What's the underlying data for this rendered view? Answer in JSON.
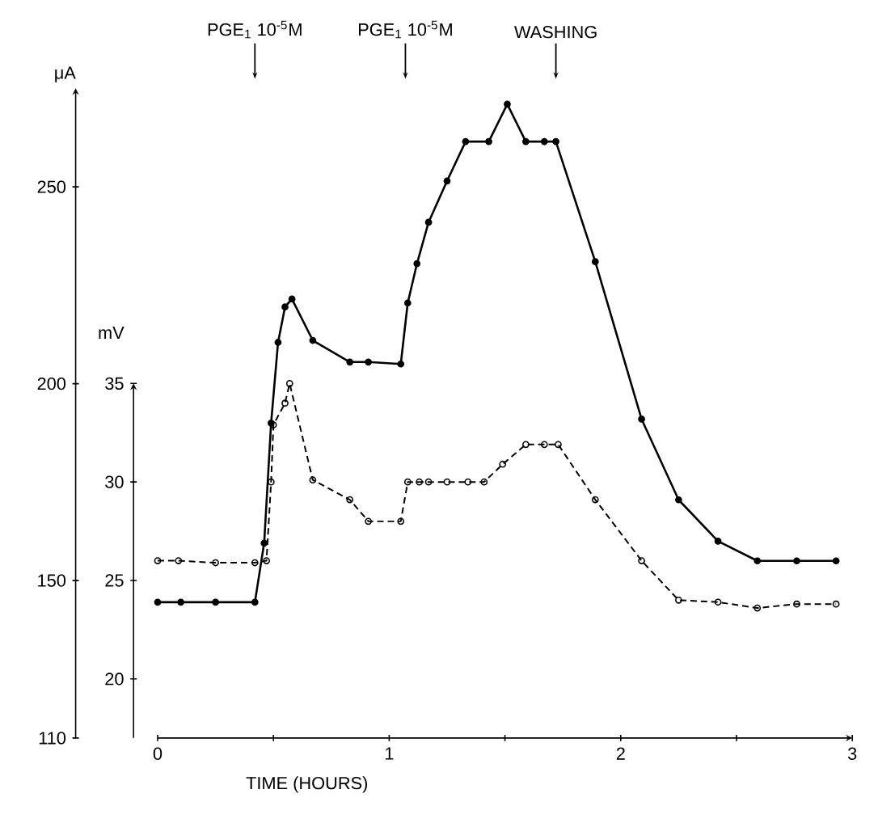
{
  "chart_data": {
    "type": "line",
    "xlabel": "TIME (HOURS)",
    "ylabel": "μA",
    "y2label": "mV",
    "xlim": [
      0,
      3
    ],
    "xticks": [
      0,
      1,
      2,
      3,
      {
        "value": 0.5,
        "label": null
      },
      {
        "value": 1.5,
        "label": null
      },
      {
        "value": 2.5,
        "label": null
      }
    ],
    "ylim": [
      110,
      275
    ],
    "yticks": [
      110,
      150,
      200,
      250
    ],
    "y2lim": [
      17,
      35
    ],
    "y2ticks": [
      20,
      25,
      30,
      35
    ],
    "marker": "circle",
    "series": [
      {
        "color": "#000000",
        "line_style": "solid",
        "axis": "y",
        "x": [
          0,
          0.1,
          0.25,
          0.42,
          0.46,
          0.49,
          0.52,
          0.55,
          0.58,
          0.67,
          0.83,
          0.91,
          1.05,
          1.08,
          1.12,
          1.17,
          1.25,
          1.33,
          1.43,
          1.51,
          1.59,
          1.67,
          1.72,
          1.89,
          2.09,
          2.25,
          2.42,
          2.59,
          2.76,
          2.93
        ],
        "values": [
          144.5,
          144.5,
          144.5,
          144.5,
          159.5,
          190,
          210.5,
          219.5,
          221.5,
          211,
          205.5,
          205.5,
          205,
          220.5,
          230.5,
          241,
          251.5,
          261.5,
          261.5,
          271,
          261.5,
          261.5,
          261.5,
          231,
          191,
          170.5,
          160,
          155,
          155,
          155
        ]
      },
      {
        "color": "#000000",
        "line_style": "dashed",
        "axis": "y2",
        "x": [
          0,
          0.09,
          0.25,
          0.42,
          0.47,
          0.49,
          0.5,
          0.55,
          0.57,
          0.67,
          0.83,
          0.91,
          1.05,
          1.08,
          1.13,
          1.17,
          1.25,
          1.34,
          1.41,
          1.49,
          1.59,
          1.67,
          1.73,
          1.89,
          2.09,
          2.25,
          2.42,
          2.59,
          2.76,
          2.93
        ],
        "values": [
          26,
          26,
          25.9,
          25.9,
          26,
          30,
          32.9,
          34,
          35,
          30.1,
          29.1,
          28,
          28,
          30,
          30,
          30,
          30,
          30,
          30,
          30.9,
          31.9,
          31.9,
          31.9,
          29.1,
          26,
          24,
          23.9,
          23.6,
          23.8,
          23.8
        ]
      }
    ],
    "annotations": [
      {
        "text": "PGE$_{1}$ 10$^{-5}$M",
        "x": 0.42
      },
      {
        "text": "PGE$_{1}$ 10$^{-5}$M",
        "x": 1.07
      },
      {
        "text": "WASHING",
        "x": 1.72
      }
    ]
  }
}
